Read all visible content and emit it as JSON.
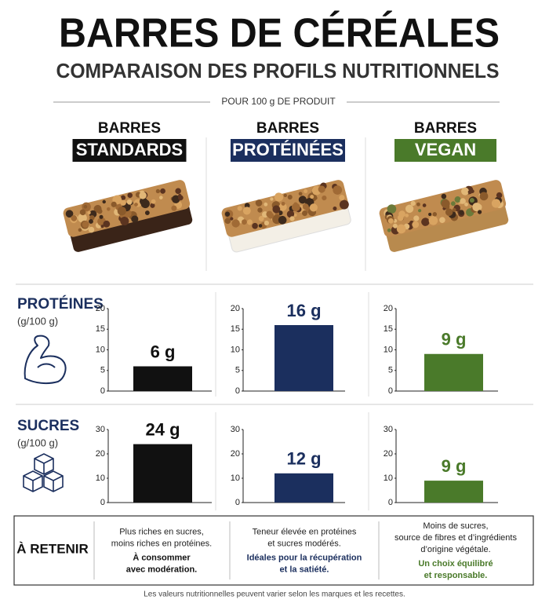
{
  "header": {
    "title": "BARRES DE CÉRÉALES",
    "subtitle": "COMPARAISON DES PROFILS NUTRITIONNELS",
    "basis": "POUR 100 g DE PRODUIT"
  },
  "columns": [
    {
      "line1": "BARRES",
      "line2": "STANDARDS",
      "color": "#111111"
    },
    {
      "line1": "BARRES",
      "line2": "PROTÉINÉES",
      "color": "#1b2f5e"
    },
    {
      "line1": "BARRES",
      "line2": "VEGAN",
      "color": "#4a7a2a"
    }
  ],
  "rows": [
    {
      "title": "PROTÉINES",
      "unit": "(g/100 g)"
    },
    {
      "title": "SUCRES",
      "unit": "(g/100 g)"
    }
  ],
  "chart_data": [
    {
      "type": "bar",
      "values": [
        6
      ],
      "value_labels": [
        "6 g"
      ],
      "color": "#111111",
      "ylim": [
        0,
        20
      ],
      "yticks": [
        0,
        5,
        10,
        15,
        20
      ]
    },
    {
      "type": "bar",
      "values": [
        16
      ],
      "value_labels": [
        "16 g"
      ],
      "color": "#1b2f5e",
      "ylim": [
        0,
        20
      ],
      "yticks": [
        0,
        5,
        10,
        15,
        20
      ]
    },
    {
      "type": "bar",
      "values": [
        9
      ],
      "value_labels": [
        "9 g"
      ],
      "color": "#4a7a2a",
      "ylim": [
        0,
        20
      ],
      "yticks": [
        0,
        5,
        10,
        15,
        20
      ]
    },
    {
      "type": "bar",
      "values": [
        24
      ],
      "value_labels": [
        "24 g"
      ],
      "color": "#111111",
      "ylim": [
        0,
        30
      ],
      "yticks": [
        0,
        10,
        20,
        30
      ]
    },
    {
      "type": "bar",
      "values": [
        12
      ],
      "value_labels": [
        "12 g"
      ],
      "color": "#1b2f5e",
      "ylim": [
        0,
        30
      ],
      "yticks": [
        0,
        10,
        20,
        30
      ]
    },
    {
      "type": "bar",
      "values": [
        9
      ],
      "value_labels": [
        "9 g"
      ],
      "color": "#4a7a2a",
      "ylim": [
        0,
        30
      ],
      "yticks": [
        0,
        10,
        20,
        30
      ]
    }
  ],
  "takeaway": {
    "title": "À RETENIR",
    "items": [
      {
        "text": [
          "Plus riches en sucres,",
          "moins riches en protéines."
        ],
        "highlight": [
          "À consommer",
          "avec modération."
        ]
      },
      {
        "text": [
          "Teneur élevée en protéines",
          "et sucres modérés."
        ],
        "highlight": [
          "Idéales pour la récupération",
          "et la satiété."
        ]
      },
      {
        "text": [
          "Moins de sucres,",
          "source de fibres et d’ingrédients",
          "d’origine végétale."
        ],
        "highlight": [
          "Un choix équilibré",
          "et responsable."
        ]
      }
    ]
  },
  "footer": "Les valeurs nutritionnelles peuvent varier selon les marques et les recettes."
}
